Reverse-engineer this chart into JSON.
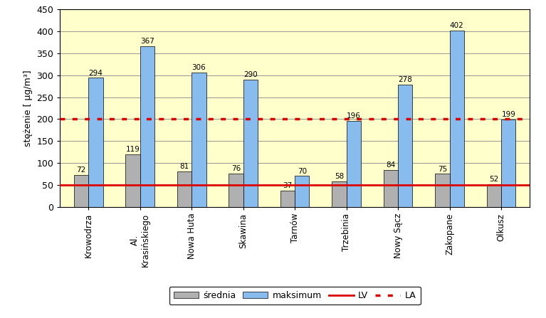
{
  "categories": [
    "Krowodrza",
    "Al.\nKrasińskiego",
    "Nowa Huta",
    "Skawina",
    "Tarnów",
    "Trzebinia",
    "Nowy Sącz",
    "Zakopane",
    "Olkusz"
  ],
  "srednia": [
    72,
    119,
    81,
    76,
    37,
    58,
    84,
    75,
    52
  ],
  "maksimum": [
    294,
    367,
    306,
    290,
    70,
    196,
    278,
    402,
    199
  ],
  "LV": 50,
  "LA": 200,
  "ylabel": "stężenie [ µg/m³]",
  "ylim": [
    0,
    450
  ],
  "yticks": [
    0,
    50,
    100,
    150,
    200,
    250,
    300,
    350,
    400,
    450
  ],
  "bar_color_srednia": "#b0b0b0",
  "bar_color_maksimum": "#88bbee",
  "LV_color": "#dd0000",
  "LA_color": "#dd0000",
  "plot_bg_color": "#ffffcc",
  "outer_bg_color": "#ffffff",
  "grid_color": "#888888",
  "bar_width": 0.28,
  "label_srednia": "średnia",
  "label_maksimum": "maksimum",
  "label_LV": "LV",
  "label_LA": "LA",
  "figsize": [
    7.67,
    4.47
  ],
  "dpi": 100
}
